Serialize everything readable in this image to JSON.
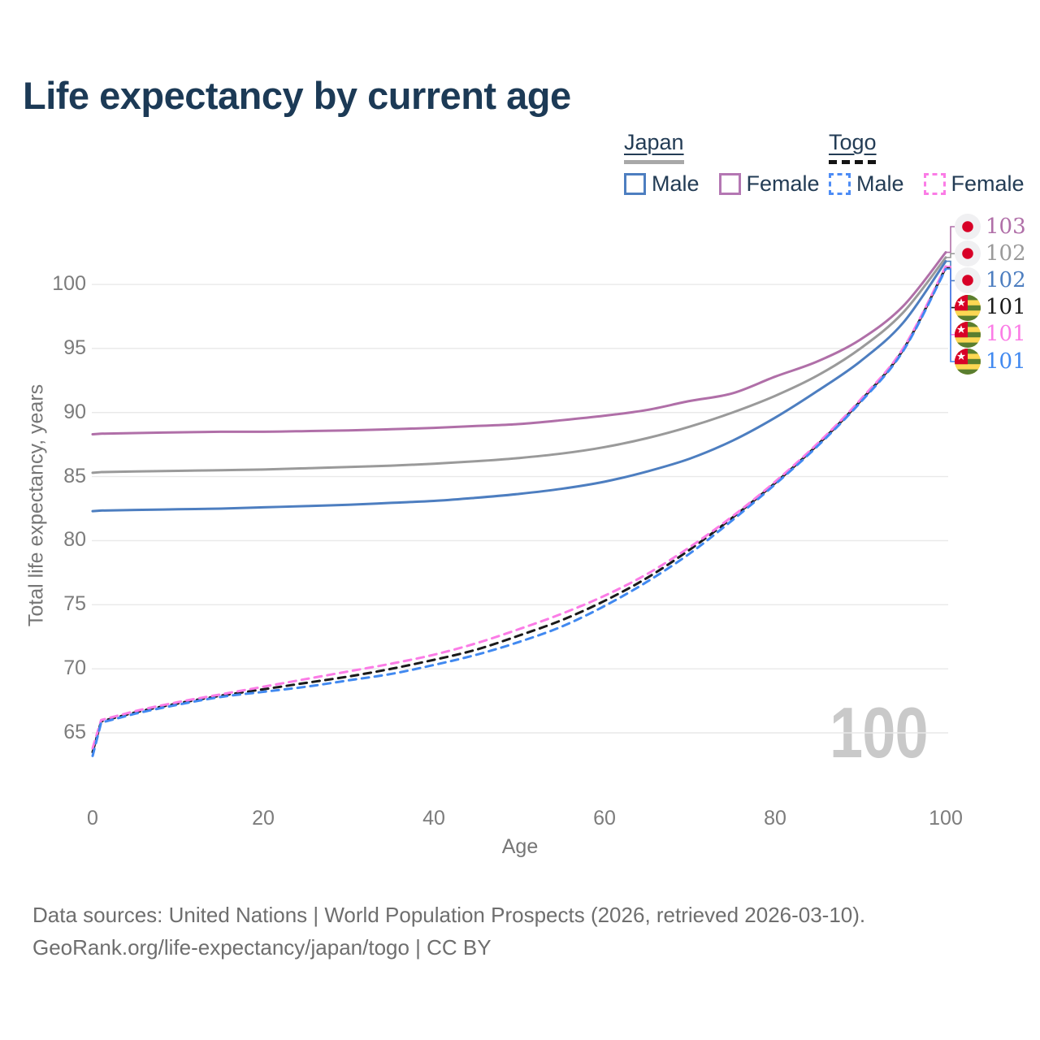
{
  "title": "Life expectancy by current age",
  "legend": {
    "groups": [
      {
        "id": "japan",
        "label": "Japan",
        "line_style": "solid",
        "bar_color": "#a8a8a8",
        "items": [
          {
            "label": "Male",
            "color": "#4d7ec0"
          },
          {
            "label": "Female",
            "color": "#b477b3"
          }
        ]
      },
      {
        "id": "togo",
        "label": "Togo",
        "line_style": "dashed",
        "bar_color": "#141414",
        "items": [
          {
            "label": "Male",
            "color": "#4d8cf5"
          },
          {
            "label": "Female",
            "color": "#fb7ce6"
          }
        ]
      }
    ]
  },
  "chart_data": {
    "type": "line",
    "title": "Life expectancy by current age",
    "xlabel": "Age",
    "ylabel": "Total life expectancy, years",
    "x_ticks": [
      0,
      20,
      40,
      60,
      80,
      100
    ],
    "y_ticks": [
      65,
      70,
      75,
      80,
      85,
      90,
      95,
      100
    ],
    "xlim": [
      0,
      100
    ],
    "ylim": [
      62,
      104
    ],
    "grid": "horizontal",
    "legend_position": "top-right",
    "x": [
      0,
      1,
      5,
      10,
      15,
      20,
      25,
      30,
      35,
      40,
      45,
      50,
      55,
      60,
      65,
      70,
      75,
      80,
      85,
      90,
      95,
      100
    ],
    "series": [
      {
        "name": "Japan Female",
        "country": "japan",
        "sex": "female",
        "color": "#b06fa8",
        "dashed": false,
        "end_label": "103",
        "values": [
          88.3,
          88.35,
          88.4,
          88.45,
          88.5,
          88.5,
          88.55,
          88.6,
          88.7,
          88.8,
          88.95,
          89.1,
          89.4,
          89.75,
          90.2,
          90.9,
          91.5,
          92.8,
          94.0,
          95.7,
          98.3,
          102.5
        ]
      },
      {
        "name": "Japan Both sexes",
        "country": "japan",
        "sex": "both",
        "color": "#9a9a9a",
        "dashed": false,
        "end_label": "102",
        "values": [
          85.3,
          85.35,
          85.4,
          85.45,
          85.5,
          85.55,
          85.65,
          85.75,
          85.85,
          86.0,
          86.2,
          86.45,
          86.8,
          87.3,
          88.0,
          88.9,
          90.0,
          91.3,
          92.9,
          95.0,
          97.8,
          102.1
        ]
      },
      {
        "name": "Japan Male",
        "country": "japan",
        "sex": "male",
        "color": "#4d7ec0",
        "dashed": false,
        "end_label": "102",
        "values": [
          82.3,
          82.35,
          82.4,
          82.45,
          82.5,
          82.6,
          82.7,
          82.8,
          82.95,
          83.1,
          83.35,
          83.65,
          84.05,
          84.6,
          85.4,
          86.4,
          87.8,
          89.6,
          91.7,
          94.0,
          97.0,
          101.8
        ]
      },
      {
        "name": "Togo Both sexes",
        "country": "togo",
        "sex": "both",
        "color": "#1a1a1a",
        "dashed": true,
        "end_label": "101",
        "values": [
          63.5,
          65.9,
          66.6,
          67.3,
          67.9,
          68.4,
          68.9,
          69.4,
          70.0,
          70.7,
          71.5,
          72.6,
          73.8,
          75.3,
          77.1,
          79.3,
          81.8,
          84.5,
          87.5,
          90.9,
          94.9,
          101.3
        ]
      },
      {
        "name": "Togo Female",
        "country": "togo",
        "sex": "female",
        "color": "#fb7ce6",
        "dashed": true,
        "end_label": "101",
        "values": [
          63.8,
          66.0,
          66.7,
          67.4,
          68.0,
          68.6,
          69.2,
          69.8,
          70.4,
          71.1,
          72.0,
          73.1,
          74.3,
          75.7,
          77.4,
          79.5,
          81.9,
          84.6,
          87.6,
          91.0,
          95.0,
          101.4
        ]
      },
      {
        "name": "Togo Male",
        "country": "togo",
        "sex": "male",
        "color": "#4189f0",
        "dashed": true,
        "end_label": "101",
        "values": [
          63.2,
          65.8,
          66.5,
          67.2,
          67.8,
          68.2,
          68.6,
          69.1,
          69.6,
          70.3,
          71.1,
          72.1,
          73.3,
          74.9,
          76.8,
          79.0,
          81.6,
          84.4,
          87.4,
          90.8,
          94.8,
          101.2
        ]
      }
    ]
  },
  "watermark": "100",
  "flag_colors": {
    "japan_bg": "#f0f0f2",
    "japan_sun": "#d80027",
    "togo_green": "#5a7e2f",
    "togo_yellow": "#fcd753",
    "togo_red": "#d80027",
    "togo_star": "#ffffff"
  },
  "footer": {
    "line1": "Data sources: United Nations | World Population Prospects (2026, retrieved 2026-03-10).",
    "line2": "GeoRank.org/life-expectancy/japan/togo | CC BY"
  }
}
